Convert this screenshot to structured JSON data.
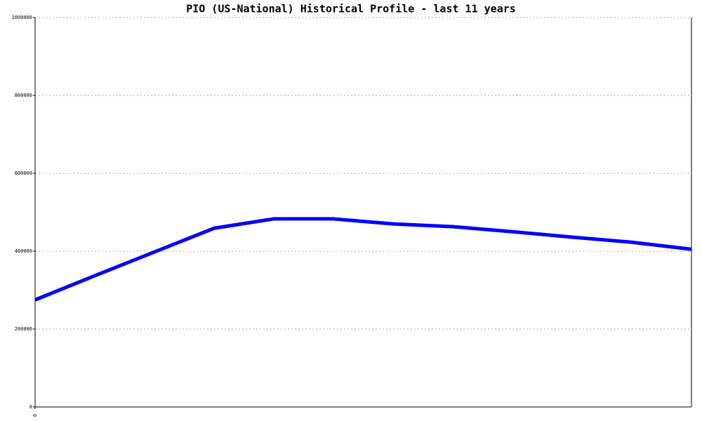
{
  "chart_data": {
    "type": "line",
    "title": "PIO (US-National) Historical Profile - last 11 years",
    "categories": [
      "0",
      null,
      null,
      null,
      null,
      null,
      null,
      null,
      null,
      null,
      null,
      null
    ],
    "series": [
      {
        "name": "PIO",
        "color": "#0000ff",
        "values": [
          275000,
          337000,
          398000,
          459000,
          483000,
          483000,
          470000,
          463000,
          450000,
          436000,
          423000,
          405000
        ]
      }
    ],
    "ylim": [
      0,
      1000000
    ],
    "yticks": [
      0,
      200000,
      400000,
      600000,
      800000,
      1000000
    ],
    "grid": true
  }
}
